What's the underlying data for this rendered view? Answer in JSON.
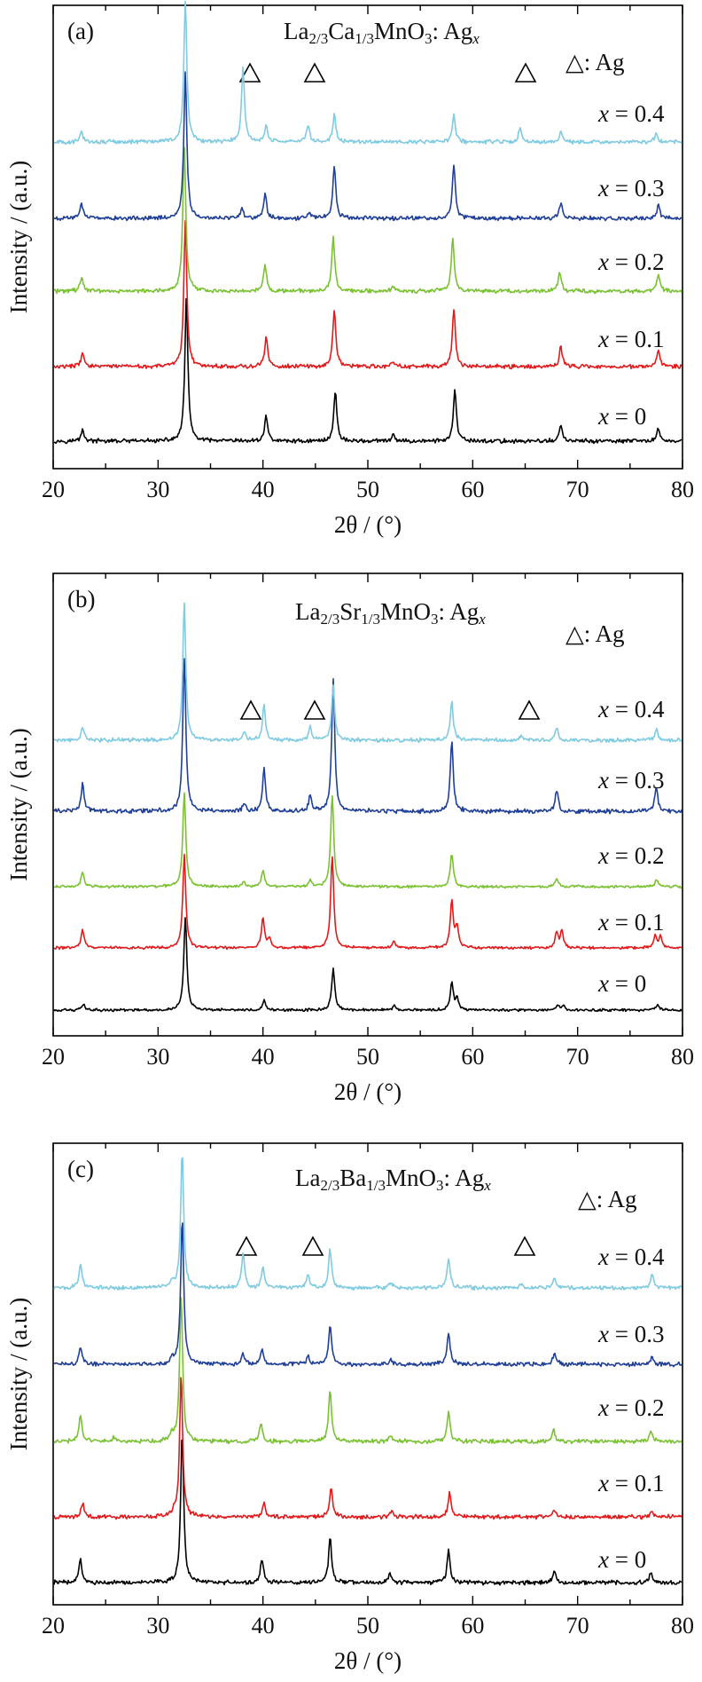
{
  "chart_data": [
    {
      "type": "line",
      "panel_label": "(a)",
      "formula": {
        "base": "La",
        "s1": "2/3",
        "el2": "Ca",
        "s2": "1/3",
        "el3": "MnO",
        "s3": "3",
        "dopant": ": Ag",
        "var": "x"
      },
      "marker_legend": "△: Ag",
      "xlabel": "2θ / (°)",
      "ylabel": "Intensity / (a.u.)",
      "xlim": [
        20,
        80
      ],
      "xticks": [
        "20",
        "30",
        "40",
        "50",
        "60",
        "70",
        "80"
      ],
      "ag_peaks_2theta": [
        38.1,
        44.3,
        64.5
      ],
      "series": [
        {
          "label": "x = 0",
          "color": "#000000",
          "peaks": [
            [
              22.8,
              0.08
            ],
            [
              32.7,
              1.0
            ],
            [
              40.3,
              0.18
            ],
            [
              46.9,
              0.35
            ],
            [
              52.4,
              0.04
            ],
            [
              58.3,
              0.35
            ],
            [
              68.4,
              0.11
            ],
            [
              77.7,
              0.09
            ]
          ]
        },
        {
          "label": "x = 0.1",
          "color": "#e31a1c",
          "peaks": [
            [
              22.8,
              0.1
            ],
            [
              32.6,
              1.0
            ],
            [
              40.3,
              0.2
            ],
            [
              46.8,
              0.4
            ],
            [
              52.4,
              0.04
            ],
            [
              58.2,
              0.4
            ],
            [
              68.4,
              0.14
            ],
            [
              77.7,
              0.11
            ]
          ]
        },
        {
          "label": "x = 0.2",
          "color": "#7ac231",
          "peaks": [
            [
              22.7,
              0.1
            ],
            [
              32.5,
              1.0
            ],
            [
              40.2,
              0.19
            ],
            [
              46.7,
              0.37
            ],
            [
              52.4,
              0.04
            ],
            [
              58.1,
              0.36
            ],
            [
              68.3,
              0.13
            ],
            [
              77.7,
              0.12
            ]
          ]
        },
        {
          "label": "x = 0.3",
          "color": "#1f3f99",
          "peaks": [
            [
              22.7,
              0.1
            ],
            [
              32.6,
              1.0
            ],
            [
              38.0,
              0.07
            ],
            [
              40.2,
              0.17
            ],
            [
              44.4,
              0.04
            ],
            [
              46.8,
              0.36
            ],
            [
              58.2,
              0.37
            ],
            [
              68.4,
              0.11
            ],
            [
              77.7,
              0.09
            ]
          ]
        },
        {
          "label": "x = 0.4",
          "color": "#7fcbe2",
          "peaks": [
            [
              22.7,
              0.07
            ],
            [
              32.6,
              1.0
            ],
            [
              38.1,
              0.53
            ],
            [
              40.3,
              0.12
            ],
            [
              44.3,
              0.12
            ],
            [
              46.8,
              0.19
            ],
            [
              58.2,
              0.19
            ],
            [
              64.5,
              0.1
            ],
            [
              68.4,
              0.07
            ],
            [
              77.5,
              0.06
            ]
          ]
        }
      ]
    },
    {
      "type": "line",
      "panel_label": "(b)",
      "formula": {
        "base": "La",
        "s1": "2/3",
        "el2": "Sr",
        "s2": "1/3",
        "el3": "MnO",
        "s3": "3",
        "dopant": ": Ag",
        "var": "x"
      },
      "marker_legend": "△: Ag",
      "xlabel": "2θ / (°)",
      "ylabel": "Intensity / (a.u.)",
      "xlim": [
        20,
        80
      ],
      "xticks": [
        "20",
        "30",
        "40",
        "50",
        "60",
        "70",
        "80"
      ],
      "ag_peaks_2theta": [
        38.2,
        44.5,
        64.6
      ],
      "series": [
        {
          "label": "x = 0",
          "color": "#000000",
          "peaks": [
            [
              22.9,
              0.07
            ],
            [
              32.6,
              1.0
            ],
            [
              40.1,
              0.1
            ],
            [
              46.7,
              0.45
            ],
            [
              52.5,
              0.05
            ],
            [
              58.0,
              0.3
            ],
            [
              58.5,
              0.12
            ],
            [
              68.1,
              0.06
            ],
            [
              68.6,
              0.05
            ],
            [
              77.6,
              0.06
            ]
          ]
        },
        {
          "label": "x = 0.1",
          "color": "#e31a1c",
          "peaks": [
            [
              22.8,
              0.2
            ],
            [
              32.5,
              1.0
            ],
            [
              40.0,
              0.32
            ],
            [
              40.6,
              0.1
            ],
            [
              46.6,
              1.0
            ],
            [
              52.5,
              0.07
            ],
            [
              58.0,
              0.5
            ],
            [
              58.5,
              0.22
            ],
            [
              68.0,
              0.16
            ],
            [
              68.5,
              0.18
            ],
            [
              77.4,
              0.14
            ],
            [
              77.9,
              0.12
            ]
          ]
        },
        {
          "label": "x = 0.2",
          "color": "#7ac231",
          "peaks": [
            [
              22.8,
              0.16
            ],
            [
              32.5,
              1.0
            ],
            [
              38.2,
              0.05
            ],
            [
              40.0,
              0.18
            ],
            [
              44.5,
              0.06
            ],
            [
              46.6,
              1.0
            ],
            [
              58.0,
              0.36
            ],
            [
              68.0,
              0.09
            ],
            [
              77.5,
              0.08
            ]
          ]
        },
        {
          "label": "x = 0.3",
          "color": "#1f3f99",
          "peaks": [
            [
              22.8,
              0.17
            ],
            [
              32.5,
              1.0
            ],
            [
              38.2,
              0.05
            ],
            [
              40.1,
              0.28
            ],
            [
              44.5,
              0.1
            ],
            [
              46.7,
              0.85
            ],
            [
              58.0,
              0.45
            ],
            [
              68.0,
              0.14
            ],
            [
              77.5,
              0.16
            ]
          ]
        },
        {
          "label": "x = 0.4",
          "color": "#7fcbe2",
          "peaks": [
            [
              22.8,
              0.1
            ],
            [
              32.5,
              1.0
            ],
            [
              38.2,
              0.06
            ],
            [
              40.1,
              0.25
            ],
            [
              44.5,
              0.09
            ],
            [
              46.7,
              0.4
            ],
            [
              58.0,
              0.28
            ],
            [
              64.6,
              0.03
            ],
            [
              68.0,
              0.09
            ],
            [
              77.5,
              0.08
            ]
          ]
        }
      ]
    },
    {
      "type": "line",
      "panel_label": "(c)",
      "formula": {
        "base": "La",
        "s1": "2/3",
        "el2": "Ba",
        "s2": "1/3",
        "el3": "MnO",
        "s3": "3",
        "dopant": ": Ag",
        "var": "x"
      },
      "marker_legend": "△: Ag",
      "xlabel": "2θ / (°)",
      "ylabel": "Intensity / (a.u.)",
      "xlim": [
        20,
        80
      ],
      "xticks": [
        "20",
        "30",
        "40",
        "50",
        "60",
        "70",
        "80"
      ],
      "ag_peaks_2theta": [
        38.1,
        44.3,
        64.6
      ],
      "series": [
        {
          "label": "x = 0",
          "color": "#000000",
          "peaks": [
            [
              22.6,
              0.16
            ],
            [
              32.3,
              1.0
            ],
            [
              39.9,
              0.16
            ],
            [
              46.4,
              0.3
            ],
            [
              52.1,
              0.06
            ],
            [
              57.7,
              0.22
            ],
            [
              67.8,
              0.08
            ],
            [
              77.0,
              0.07
            ]
          ]
        },
        {
          "label": "x = 0.1",
          "color": "#e31a1c",
          "peaks": [
            [
              22.8,
              0.1
            ],
            [
              31.5,
              0.03
            ],
            [
              32.2,
              1.0
            ],
            [
              40.1,
              0.1
            ],
            [
              46.5,
              0.2
            ],
            [
              52.3,
              0.04
            ],
            [
              57.8,
              0.17
            ],
            [
              67.8,
              0.05
            ],
            [
              77.1,
              0.04
            ]
          ]
        },
        {
          "label": "x = 0.2",
          "color": "#7ac231",
          "peaks": [
            [
              22.6,
              0.18
            ],
            [
              25.8,
              0.03
            ],
            [
              31.3,
              0.05
            ],
            [
              32.2,
              1.0
            ],
            [
              39.8,
              0.12
            ],
            [
              46.4,
              0.35
            ],
            [
              52.2,
              0.04
            ],
            [
              57.7,
              0.21
            ],
            [
              67.7,
              0.08
            ],
            [
              77.0,
              0.07
            ]
          ]
        },
        {
          "label": "x = 0.3",
          "color": "#1f3f99",
          "peaks": [
            [
              22.6,
              0.11
            ],
            [
              31.3,
              0.04
            ],
            [
              32.3,
              1.0
            ],
            [
              38.1,
              0.07
            ],
            [
              39.9,
              0.1
            ],
            [
              44.3,
              0.05
            ],
            [
              46.4,
              0.27
            ],
            [
              52.2,
              0.03
            ],
            [
              57.7,
              0.22
            ],
            [
              67.8,
              0.08
            ],
            [
              77.1,
              0.05
            ]
          ]
        },
        {
          "label": "x = 0.4",
          "color": "#7fcbe2",
          "peaks": [
            [
              22.6,
              0.17
            ],
            [
              31.3,
              0.05
            ],
            [
              32.3,
              1.0
            ],
            [
              38.1,
              0.25
            ],
            [
              40.0,
              0.15
            ],
            [
              44.3,
              0.09
            ],
            [
              46.4,
              0.28
            ],
            [
              52.2,
              0.04
            ],
            [
              57.7,
              0.22
            ],
            [
              64.6,
              0.03
            ],
            [
              67.8,
              0.08
            ],
            [
              77.1,
              0.1
            ]
          ]
        }
      ]
    }
  ]
}
